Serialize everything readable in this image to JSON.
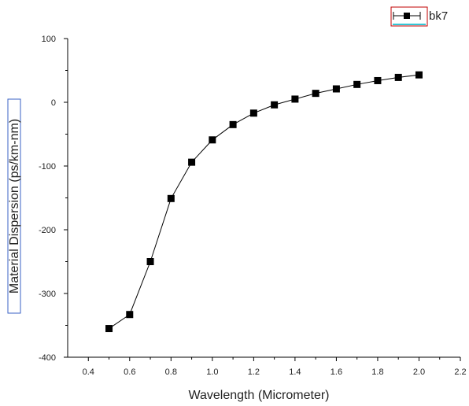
{
  "chart_data": {
    "type": "line",
    "xlabel": "Wavelength (Micrometer)",
    "ylabel": "Material Dispersion (ps/km-nm)",
    "xlim": [
      0.3,
      2.2
    ],
    "ylim": [
      -400,
      100
    ],
    "x_ticks": [
      "0.4",
      "0.6",
      "0.8",
      "1.0",
      "1.2",
      "1.4",
      "1.6",
      "1.8",
      "2.0",
      "2.2"
    ],
    "y_ticks": [
      "100",
      "0",
      "-100",
      "-200",
      "-300",
      "-400"
    ],
    "grid": false,
    "legend_position": "top-right",
    "series": [
      {
        "name": "bk7",
        "marker": "square",
        "color": "#000000",
        "x": [
          0.5,
          0.6,
          0.7,
          0.8,
          0.9,
          1.0,
          1.1,
          1.2,
          1.3,
          1.4,
          1.5,
          1.6,
          1.7,
          1.8,
          1.9,
          2.0
        ],
        "y": [
          -355,
          -333,
          -250,
          -151,
          -94,
          -59,
          -35,
          -17,
          -4,
          5,
          14,
          21,
          28,
          34,
          39,
          43
        ]
      }
    ]
  },
  "legend": {
    "entries": [
      "bk7"
    ]
  }
}
